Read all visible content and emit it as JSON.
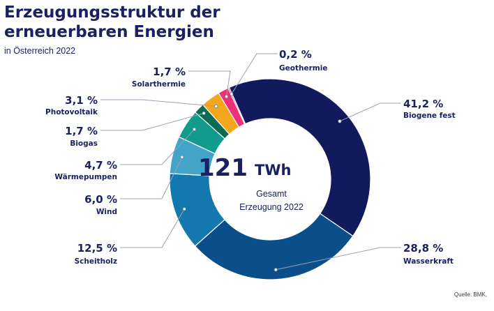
{
  "title_line1": "Erzeugungsstruktur der",
  "title_line2": "erneuerbaren Energien",
  "subtitle": "in Österreich 2022",
  "source": "Quelle: BMK,",
  "chart_data": {
    "type": "donut",
    "title": "Erzeugungsstruktur der erneuerbaren Energien",
    "subtitle": "in Österreich 2022",
    "center_value": "121",
    "center_unit": "TWh",
    "center_label_line1": "Gesamt",
    "center_label_line2": "Erzeugung 2022",
    "unit": "%",
    "slices": [
      {
        "name": "Biogene fest",
        "value": 41.2,
        "label": "41,2 %",
        "color": "#111a5c"
      },
      {
        "name": "Wasserkraft",
        "value": 28.8,
        "label": "28,8 %",
        "color": "#0b4f8a"
      },
      {
        "name": "Scheitholz",
        "value": 12.5,
        "label": "12,5 %",
        "color": "#1378ad"
      },
      {
        "name": "Wind",
        "value": 6.0,
        "label": "6,0 %",
        "color": "#43a3c8"
      },
      {
        "name": "Wärmepumpen",
        "value": 4.7,
        "label": "4,7 %",
        "color": "#109b8a"
      },
      {
        "name": "Biogas",
        "value": 1.7,
        "label": "1,7 %",
        "color": "#0b6b55"
      },
      {
        "name": "Photovoltaik",
        "value": 3.1,
        "label": "3,1 %",
        "color": "#f4a71d"
      },
      {
        "name": "Solarthermie",
        "value": 1.7,
        "label": "1,7 %",
        "color": "#f02f7a"
      },
      {
        "name": "Geothermie",
        "value": 0.2,
        "label": "0,2 %",
        "color": "#b3124d"
      }
    ]
  }
}
